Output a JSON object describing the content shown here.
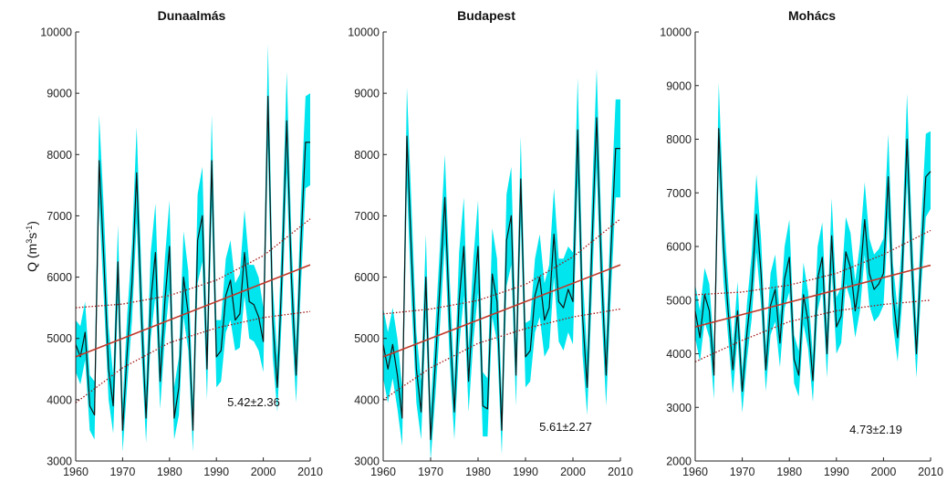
{
  "colors": {
    "band": "#00e5ee",
    "series": "#111111",
    "trend": "#c0392b",
    "ci": "#a31515",
    "axis": "#222222"
  },
  "chart_data": [
    {
      "type": "line",
      "title": "Dunaalmás",
      "ylabel": "Q (m3s-1)",
      "ylabel_parts": {
        "prefix": "Q (m",
        "sup1": "3",
        "mid": "s",
        "sup2": "-1",
        "suffix": ")"
      },
      "xlim": [
        1960,
        2010
      ],
      "ylim": [
        3000,
        10000
      ],
      "xticks": [
        1960,
        1970,
        1980,
        1990,
        2000,
        2010
      ],
      "yticks": [
        3000,
        4000,
        5000,
        6000,
        7000,
        8000,
        9000,
        10000
      ],
      "trend_text": "5.42±2.36",
      "trend": {
        "x": [
          1960,
          2010
        ],
        "y": [
          4700,
          6200
        ]
      },
      "ci_upper": {
        "x": [
          1960,
          1970,
          1980,
          1990,
          2000,
          2010
        ],
        "y": [
          5500,
          5560,
          5700,
          5950,
          6350,
          6950
        ]
      },
      "ci_lower": {
        "x": [
          1960,
          1970,
          1980,
          1990,
          2000,
          2010
        ],
        "y": [
          3950,
          4520,
          4930,
          5170,
          5340,
          5440
        ]
      },
      "series": {
        "x": [
          1960,
          1961,
          1962,
          1963,
          1964,
          1965,
          1966,
          1967,
          1968,
          1969,
          1970,
          1971,
          1972,
          1973,
          1974,
          1975,
          1976,
          1977,
          1978,
          1979,
          1980,
          1981,
          1982,
          1983,
          1984,
          1985,
          1986,
          1987,
          1988,
          1989,
          1990,
          1991,
          1992,
          1993,
          1994,
          1995,
          1996,
          1997,
          1998,
          1999,
          2000,
          2001,
          2002,
          2003,
          2004,
          2005,
          2006,
          2007,
          2008,
          2009,
          2010
        ],
        "y": [
          4900,
          4700,
          5100,
          3900,
          3750,
          7900,
          6300,
          4500,
          3900,
          6250,
          3500,
          4800,
          5900,
          7700,
          5400,
          3700,
          5600,
          6400,
          4300,
          5600,
          6500,
          3700,
          4200,
          6000,
          5400,
          3500,
          6600,
          7000,
          4500,
          7900,
          4700,
          4800,
          5700,
          5950,
          5300,
          5400,
          6400,
          5600,
          5550,
          5350,
          4950,
          8950,
          5300,
          4200,
          6100,
          8550,
          6000,
          4400,
          6500,
          8200,
          8200
        ]
      },
      "band_upper": [
        5300,
        5200,
        5600,
        4400,
        4300,
        8650,
        7100,
        5200,
        4400,
        6850,
        3950,
        5400,
        6550,
        8450,
        6100,
        4200,
        6400,
        7200,
        4850,
        6300,
        7250,
        4200,
        4700,
        6750,
        6100,
        4000,
        7350,
        7800,
        5050,
        8650,
        5300,
        5300,
        6300,
        6600,
        5900,
        6050,
        7100,
        6200,
        6200,
        6000,
        5500,
        9800,
        5900,
        4700,
        6800,
        9350,
        6650,
        4950,
        7200,
        8950,
        9000
      ],
      "band_lower": [
        4450,
        4250,
        4650,
        3500,
        3350,
        7200,
        5650,
        4000,
        3450,
        5600,
        3150,
        4250,
        5300,
        6900,
        4800,
        3300,
        5000,
        5700,
        3850,
        5000,
        5800,
        3350,
        3750,
        5350,
        4800,
        3150,
        5900,
        6250,
        4000,
        7150,
        4200,
        4300,
        5100,
        5300,
        4800,
        4850,
        5700,
        5000,
        4950,
        4800,
        4450,
        8150,
        4700,
        3800,
        5450,
        7700,
        5350,
        3950,
        5800,
        7450,
        7500
      ]
    },
    {
      "type": "line",
      "title": "Budapest",
      "xlim": [
        1960,
        2010
      ],
      "ylim": [
        3000,
        10000
      ],
      "xticks": [
        1960,
        1970,
        1980,
        1990,
        2000,
        2010
      ],
      "yticks": [
        3000,
        4000,
        5000,
        6000,
        7000,
        8000,
        9000,
        10000
      ],
      "trend_text": "5.61±2.27",
      "trend": {
        "x": [
          1960,
          2010
        ],
        "y": [
          4700,
          6200
        ]
      },
      "ci_upper": {
        "x": [
          1960,
          1970,
          1980,
          1990,
          2000,
          2010
        ],
        "y": [
          5400,
          5480,
          5620,
          5880,
          6330,
          6950
        ]
      },
      "ci_lower": {
        "x": [
          1960,
          1970,
          1980,
          1990,
          2000,
          2010
        ],
        "y": [
          4000,
          4520,
          4920,
          5160,
          5350,
          5480
        ]
      },
      "series": {
        "x": [
          1960,
          1961,
          1962,
          1963,
          1964,
          1965,
          1966,
          1967,
          1968,
          1969,
          1970,
          1971,
          1972,
          1973,
          1974,
          1975,
          1976,
          1977,
          1978,
          1979,
          1980,
          1981,
          1982,
          1983,
          1984,
          1985,
          1986,
          1987,
          1988,
          1989,
          1990,
          1991,
          1992,
          1993,
          1994,
          1995,
          1996,
          1997,
          1998,
          1999,
          2000,
          2001,
          2002,
          2003,
          2004,
          2005,
          2006,
          2007,
          2008,
          2009,
          2010
        ],
        "y": [
          4900,
          4500,
          4900,
          4400,
          3700,
          8300,
          6300,
          4500,
          3800,
          6000,
          3350,
          4600,
          5900,
          7300,
          5300,
          3800,
          5600,
          6500,
          4300,
          5600,
          6500,
          3900,
          3850,
          6050,
          5600,
          3500,
          6600,
          7000,
          4400,
          7600,
          4700,
          4800,
          5700,
          6000,
          5300,
          5500,
          6700,
          5600,
          5500,
          5800,
          5600,
          8400,
          5400,
          4200,
          6500,
          8600,
          6100,
          4400,
          6400,
          8100,
          8100
        ]
      },
      "band_upper": [
        5500,
        5100,
        5500,
        5000,
        4200,
        9100,
        7100,
        5100,
        4300,
        6700,
        3850,
        5200,
        6550,
        8000,
        6000,
        4300,
        6400,
        7300,
        4850,
        6300,
        7250,
        4450,
        4350,
        6800,
        6300,
        4000,
        7350,
        7800,
        4950,
        8300,
        5250,
        5300,
        6300,
        6700,
        5900,
        6200,
        7450,
        6300,
        6300,
        6500,
        6400,
        9250,
        6100,
        4750,
        7300,
        9400,
        6800,
        4950,
        7100,
        8900,
        8900
      ],
      "band_lower": [
        4350,
        3950,
        4350,
        3850,
        3250,
        7500,
        5550,
        3950,
        3350,
        5350,
        3000,
        4050,
        5250,
        6550,
        4650,
        3350,
        4850,
        5700,
        3800,
        4950,
        5750,
        3400,
        3400,
        5350,
        4950,
        3100,
        5850,
        6200,
        3900,
        6900,
        4200,
        4300,
        5100,
        5350,
        4700,
        4850,
        6000,
        4950,
        4800,
        5100,
        4900,
        7550,
        4750,
        3750,
        5750,
        7800,
        5450,
        3900,
        5700,
        7300,
        7300
      ]
    },
    {
      "type": "line",
      "title": "Mohács",
      "xlim": [
        1960,
        2010
      ],
      "ylim": [
        2000,
        10000
      ],
      "xticks": [
        1960,
        1970,
        1980,
        1990,
        2000,
        2010
      ],
      "yticks": [
        2000,
        3000,
        4000,
        5000,
        6000,
        7000,
        8000,
        9000,
        10000
      ],
      "trend_text": "4.73±2.19",
      "trend": {
        "x": [
          1960,
          2010
        ],
        "y": [
          4500,
          5650
        ]
      },
      "ci_upper": {
        "x": [
          1960,
          1970,
          1980,
          1990,
          2000,
          2010
        ],
        "y": [
          5100,
          5150,
          5280,
          5500,
          5850,
          6300
        ]
      },
      "ci_lower": {
        "x": [
          1960,
          1970,
          1980,
          1990,
          2000,
          2010
        ],
        "y": [
          3850,
          4250,
          4600,
          4800,
          4920,
          5000
        ]
      },
      "series": {
        "x": [
          1960,
          1961,
          1962,
          1963,
          1964,
          1965,
          1966,
          1967,
          1968,
          1969,
          1970,
          1971,
          1972,
          1973,
          1974,
          1975,
          1976,
          1977,
          1978,
          1979,
          1980,
          1981,
          1982,
          1983,
          1984,
          1985,
          1986,
          1987,
          1988,
          1989,
          1990,
          1991,
          1992,
          1993,
          1994,
          1995,
          1996,
          1997,
          1998,
          1999,
          2000,
          2001,
          2002,
          2003,
          2004,
          2005,
          2006,
          2007,
          2008,
          2009,
          2010
        ],
        "y": [
          4800,
          4300,
          5100,
          4800,
          3600,
          8200,
          6000,
          4800,
          3700,
          4800,
          3300,
          4400,
          5200,
          6600,
          5500,
          3700,
          4900,
          5200,
          4200,
          5400,
          5800,
          3900,
          3600,
          5100,
          4600,
          3500,
          5400,
          5800,
          4000,
          6200,
          4500,
          4700,
          5900,
          5600,
          4800,
          5400,
          6500,
          5500,
          5200,
          5300,
          5500,
          7300,
          5100,
          4300,
          5600,
          8000,
          5700,
          4000,
          5800,
          7300,
          7400
        ]
      },
      "band_upper": [
        5300,
        4800,
        5600,
        5300,
        4100,
        9050,
        6700,
        5350,
        4150,
        5350,
        3700,
        4950,
        5850,
        7350,
        6150,
        4150,
        5500,
        5850,
        4700,
        6000,
        6500,
        4350,
        4050,
        5700,
        5150,
        3950,
        6000,
        6450,
        4500,
        6900,
        5050,
        5250,
        6550,
        6250,
        5350,
        6050,
        7200,
        6150,
        5850,
        5950,
        6150,
        8100,
        5700,
        4800,
        6250,
        8850,
        6350,
        4500,
        6450,
        8100,
        8150
      ],
      "band_lower": [
        4300,
        3850,
        4600,
        4300,
        3150,
        7450,
        5350,
        4300,
        3250,
        4300,
        2900,
        3900,
        4650,
        5900,
        4900,
        3300,
        4350,
        4600,
        3750,
        4850,
        5150,
        3450,
        3200,
        4550,
        4100,
        3100,
        4800,
        5200,
        3550,
        5550,
        4000,
        4200,
        5300,
        5000,
        4300,
        4800,
        5850,
        4900,
        4600,
        4700,
        4900,
        6550,
        4550,
        3850,
        5000,
        7200,
        5100,
        3550,
        5200,
        6550,
        6700
      ]
    }
  ]
}
